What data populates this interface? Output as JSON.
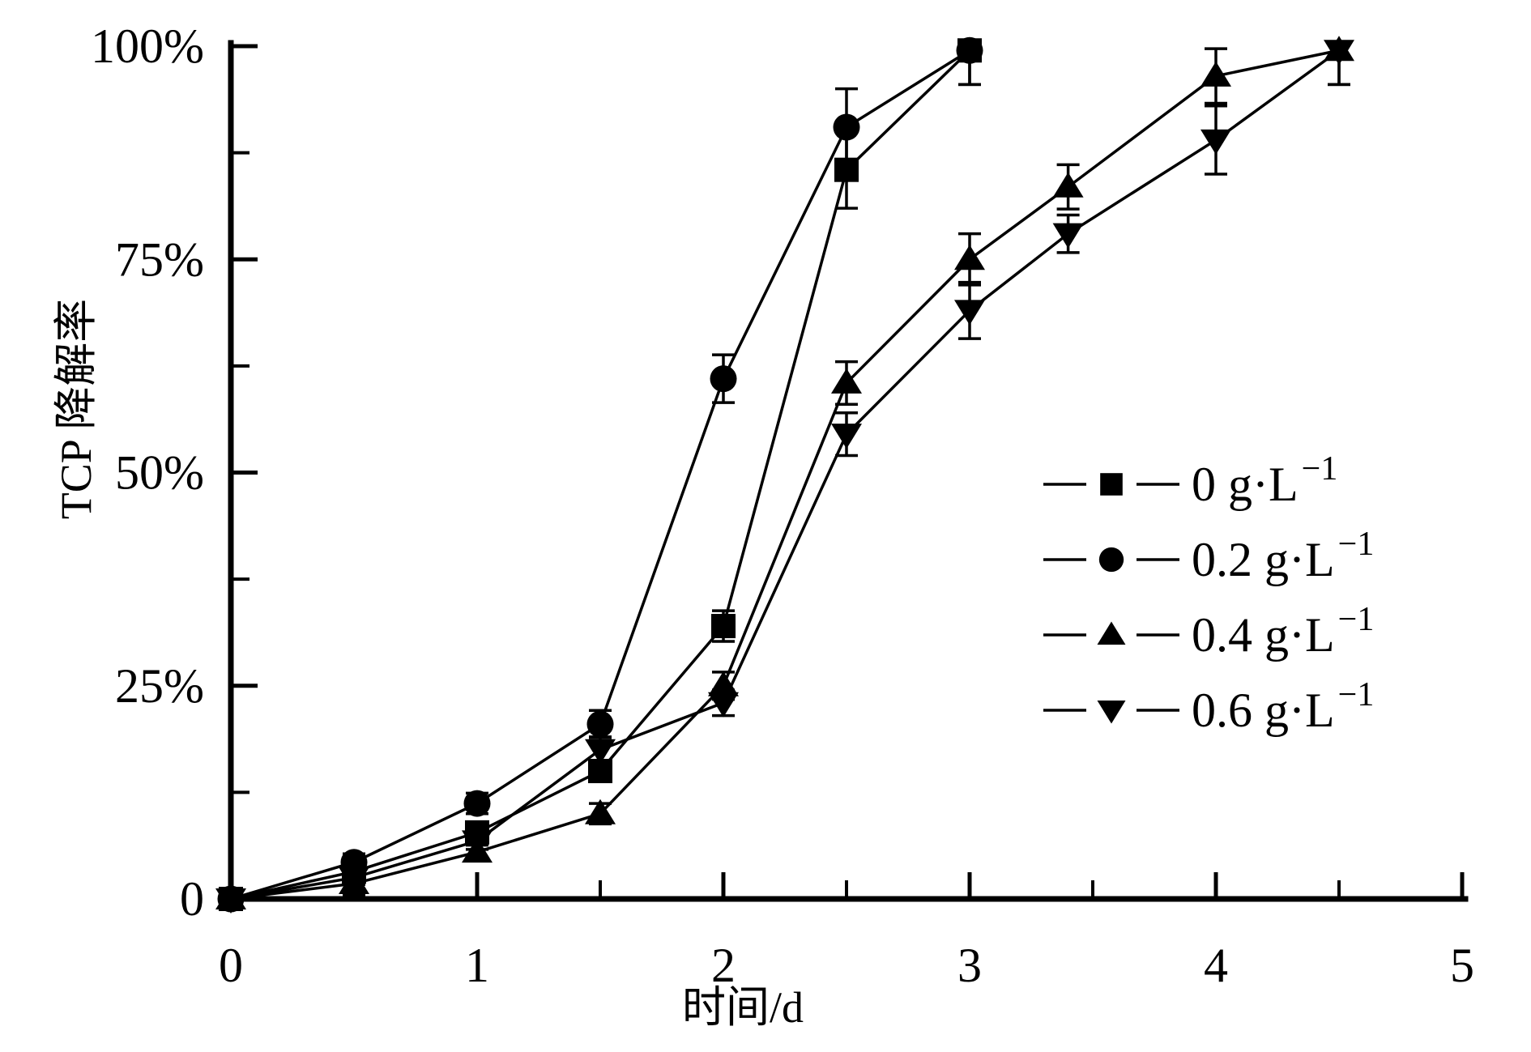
{
  "chart_data": {
    "type": "line",
    "title": "",
    "xlabel": "时间/d",
    "ylabel": "TCP 降解率",
    "xlim": [
      0,
      5
    ],
    "ylim": [
      0,
      100
    ],
    "grid": false,
    "legend_position": "right-middle",
    "axis_color": "#000000",
    "background_color": "#ffffff",
    "x_major_ticks": [
      0,
      1,
      2,
      3,
      4,
      5
    ],
    "x_tick_labels": [
      "0",
      "1",
      "2",
      "3",
      "4",
      "5"
    ],
    "x_minor_ticks": [
      0.5,
      1.5,
      2.5,
      3.5,
      4.5
    ],
    "y_major_ticks": [
      0,
      25,
      50,
      75,
      100
    ],
    "y_tick_labels": [
      "0",
      "25%",
      "50%",
      "75%",
      "100%"
    ],
    "y_minor_ticks": [
      12.5,
      37.5,
      62.5,
      87.5
    ],
    "series": [
      {
        "name": "0 g·L⁻¹",
        "legend_label": "0 g·L",
        "legend_sup": "−1",
        "marker": "square",
        "color": "#000000",
        "x": [
          0,
          0.5,
          1,
          1.5,
          2,
          2.5,
          3
        ],
        "y": [
          0,
          3.2,
          7.8,
          15,
          32,
          85.5,
          99.5
        ],
        "yerr": [
          0,
          1,
          1,
          1.2,
          1.8,
          4.5,
          4
        ]
      },
      {
        "name": "0.2 g·L⁻¹",
        "legend_label": "0.2 g·L",
        "legend_sup": "−1",
        "marker": "circle",
        "color": "#000000",
        "x": [
          0,
          0.5,
          1,
          1.5,
          2,
          2.5,
          3
        ],
        "y": [
          0,
          4.3,
          11.2,
          20.5,
          61,
          90.5,
          99.5
        ],
        "yerr": [
          0,
          1,
          1.2,
          1.6,
          2.8,
          4.5,
          4
        ]
      },
      {
        "name": "0.4 g·L⁻¹",
        "legend_label": "0.4 g·L",
        "legend_sup": "−1",
        "marker": "triangle-up",
        "color": "#000000",
        "x": [
          0,
          0.5,
          1,
          1.5,
          2,
          2.5,
          3,
          3.4,
          4,
          4.5
        ],
        "y": [
          0,
          1.8,
          5.5,
          10,
          25,
          60.5,
          75,
          83.5,
          96.5,
          99.5
        ],
        "yerr": [
          0,
          1.3,
          0.8,
          1.2,
          1.6,
          2.5,
          3,
          2.6,
          3.2,
          4
        ]
      },
      {
        "name": "0.6 g·L⁻¹",
        "legend_label": "0.6 g·L",
        "legend_sup": "−1",
        "marker": "triangle-down",
        "color": "#000000",
        "x": [
          0,
          0.5,
          1,
          1.5,
          2,
          2.5,
          3,
          3.4,
          4,
          4.5
        ],
        "y": [
          0,
          2.5,
          6.8,
          17.5,
          23,
          54.5,
          69,
          78,
          89,
          99.5
        ],
        "yerr": [
          0,
          0.8,
          1,
          1.5,
          1.5,
          2.5,
          3.3,
          2.2,
          4,
          4
        ]
      }
    ]
  }
}
